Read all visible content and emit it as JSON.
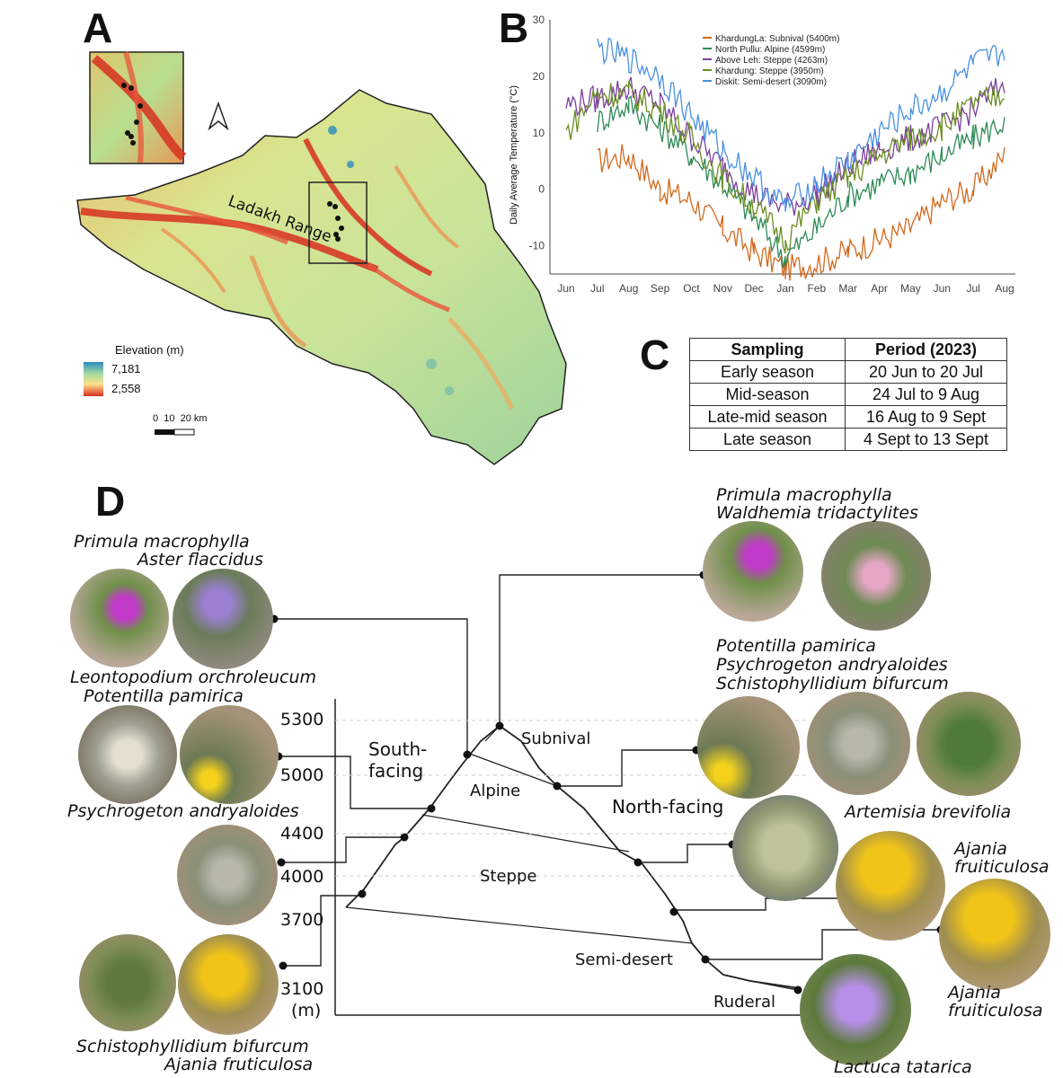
{
  "panels": {
    "a": "A",
    "b": "B",
    "c": "C",
    "d": "D"
  },
  "map": {
    "range_label": "Ladakh Range",
    "legend_title": "Elevation (m)",
    "legend_max": "7,181",
    "legend_min": "2,558",
    "scale_label": "0  10  20 km",
    "colors": {
      "low": "#d7301f",
      "mid": "#fee08b",
      "high": "#2b8cbe"
    }
  },
  "chart_data": {
    "type": "line",
    "ylabel": "Daily Average Temperature (°C)",
    "xlabel": "",
    "ylim": [
      -15,
      30
    ],
    "yticks": [
      "30",
      "20",
      "10",
      "0",
      "-10"
    ],
    "categories": [
      "Jun",
      "Jul",
      "Aug",
      "Sep",
      "Oct",
      "Nov",
      "Dec",
      "Jan",
      "Feb",
      "Mar",
      "Apr",
      "May",
      "Jun",
      "Jul",
      "Aug"
    ],
    "series": [
      {
        "name": "KhardungLa: Subnival (5400m)",
        "color": "#d2691e",
        "values": [
          null,
          5,
          6,
          0,
          -2,
          -7,
          -11,
          -14,
          -13,
          -11,
          -9,
          -7,
          -2,
          0,
          6
        ]
      },
      {
        "name": "North Pullu: Alpine (4599m)",
        "color": "#2e8b57",
        "values": [
          null,
          12,
          15,
          11,
          6,
          1,
          -5,
          -12,
          -7,
          -1,
          1,
          3,
          6,
          9,
          12
        ]
      },
      {
        "name": "Above Leh: Steppe (4263m)",
        "color": "#7b3f9e",
        "values": [
          15,
          16,
          18,
          15,
          9,
          4,
          -1,
          -3,
          -1,
          4,
          7,
          9,
          11,
          14,
          19
        ]
      },
      {
        "name": "Khardung: Steppe (3950m)",
        "color": "#6b8e23",
        "values": [
          10,
          17,
          17,
          14,
          9,
          2,
          -3,
          -9,
          -2,
          2,
          6,
          9,
          11,
          15,
          17
        ]
      },
      {
        "name": "Diskit: Semi-desert (3090m)",
        "color": "#4a90e2",
        "values": [
          null,
          25,
          23,
          20,
          13,
          7,
          2,
          -3,
          1,
          5,
          10,
          14,
          17,
          22,
          24
        ]
      }
    ]
  },
  "sampling_table": {
    "headers": [
      "Sampling",
      "Period (2023)"
    ],
    "rows": [
      [
        "Early season",
        "20 Jun to 20 Jul"
      ],
      [
        "Mid-season",
        "24 Jul to 9 Aug"
      ],
      [
        "Late-mid season",
        "16 Aug to 9 Sept"
      ],
      [
        "Late season",
        "4 Sept to 13 Sept"
      ]
    ]
  },
  "diagram": {
    "elev_ticks": [
      "5300",
      "5000",
      "4400",
      "4000",
      "3700",
      "3100"
    ],
    "unit": "(m)",
    "south_facing": "South-facing",
    "south_facing_l1": "South-",
    "south_facing_l2": "facing",
    "north_facing": "North-facing",
    "zones": [
      "Subnival",
      "Alpine",
      "Steppe",
      "Semi-desert",
      "Ruderal"
    ],
    "species_left": {
      "g1_l1": "Primula macrophylla",
      "g1_l2": "Aster flaccidus",
      "g2_l1": "Leontopodium orchroleucum",
      "g2_l2": "Potentilla pamirica",
      "g3_l1": "Psychrogeton andryaloides",
      "g4_l1": "Schistophyllidium bifurcum",
      "g4_l2": "Ajania fruticulosa"
    },
    "species_right": {
      "g1_l1": "Primula macrophylla",
      "g1_l2": "Waldhemia tridactylites",
      "g2_l1": "Potentilla pamirica",
      "g2_l2": "Psychrogeton andryaloides",
      "g2_l3": "Schistophyllidium bifurcum",
      "g3_l1": "Artemisia brevifolia",
      "g4_l1": "Ajania",
      "g4_l2": "fruiticulosa",
      "g5_l1": "Ajania",
      "g5_l2": "fruiticulosa",
      "g6_l1": "Lactuca tatarica"
    }
  }
}
